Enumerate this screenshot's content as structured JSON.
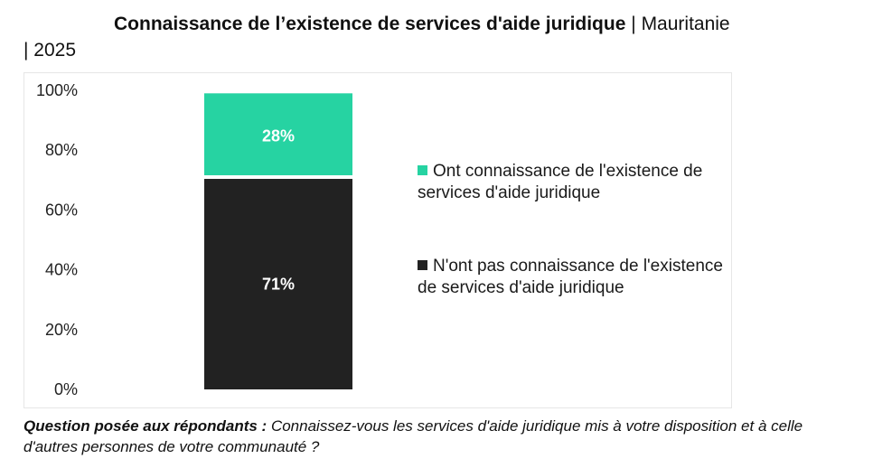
{
  "title": {
    "main": "Connaissance de l’existence de services d'aide juridique",
    "separator": "|",
    "country": "Mauritanie",
    "year_line": "| 2025"
  },
  "chart_data": {
    "type": "bar",
    "stacked": true,
    "categories": [
      ""
    ],
    "series": [
      {
        "name": "N'ont pas connaissance de l'existence de services d'aide juridique",
        "values": [
          71
        ],
        "label": "71%",
        "color": "#222222"
      },
      {
        "name": "Ont connaissance de l'existence de services d'aide juridique",
        "values": [
          28
        ],
        "label": "28%",
        "color": "#26d3a2"
      }
    ],
    "ylim": [
      0,
      100
    ],
    "yticks": [
      "0%",
      "20%",
      "40%",
      "60%",
      "80%",
      "100%"
    ],
    "grid": false,
    "legend_position": "right"
  },
  "footnote": {
    "label": "Question posée aux répondants :",
    "text": " Connaissez-vous les services d'aide juridique mis à votre disposition et à celle d'autres personnes de votre communauté ?"
  }
}
